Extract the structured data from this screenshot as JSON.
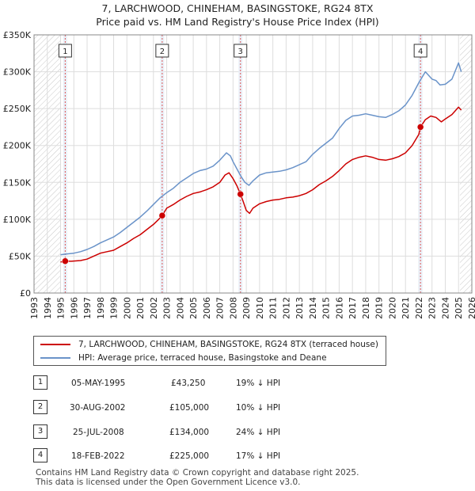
{
  "title_line1": "7, LARCHWOOD, CHINEHAM, BASINGSTOKE, RG24 8TX",
  "title_line2": "Price paid vs. HM Land Registry's House Price Index (HPI)",
  "colors": {
    "property": "#cc0000",
    "hpi": "#6a93c9",
    "grid": "#dddddd",
    "band": "#e8eef7"
  },
  "chart_data": {
    "type": "line",
    "x_range": [
      1993,
      2026
    ],
    "ylim": [
      0,
      350000
    ],
    "y_ticks": [
      {
        "value": 0,
        "label": "£0"
      },
      {
        "value": 50000,
        "label": "£50K"
      },
      {
        "value": 100000,
        "label": "£100K"
      },
      {
        "value": 150000,
        "label": "£150K"
      },
      {
        "value": 200000,
        "label": "£200K"
      },
      {
        "value": 250000,
        "label": "£250K"
      },
      {
        "value": 300000,
        "label": "£300K"
      },
      {
        "value": 350000,
        "label": "£350K"
      }
    ],
    "x_ticks": [
      "1993",
      "1994",
      "1995",
      "1996",
      "1997",
      "1998",
      "1999",
      "2000",
      "2001",
      "2002",
      "2003",
      "2004",
      "2005",
      "2006",
      "2007",
      "2008",
      "2009",
      "2010",
      "2011",
      "2012",
      "2013",
      "2014",
      "2015",
      "2016",
      "2017",
      "2018",
      "2019",
      "2020",
      "2021",
      "2022",
      "2023",
      "2024",
      "2025",
      "2026"
    ],
    "hatch_before": 1995.0,
    "hatch_after": 2025.1,
    "series": [
      {
        "name": "7, LARCHWOOD, CHINEHAM, BASINGSTOKE, RG24 8TX (terraced house)",
        "x": [
          1995.0,
          1995.35,
          1995.8,
          1996.5,
          1997.0,
          1997.5,
          1998.0,
          1998.5,
          1999.0,
          1999.5,
          2000.0,
          2000.5,
          2001.0,
          2001.5,
          2002.0,
          2002.4,
          2002.66,
          2003.0,
          2003.5,
          2004.0,
          2004.5,
          2005.0,
          2005.5,
          2006.0,
          2006.5,
          2007.0,
          2007.4,
          2007.7,
          2008.0,
          2008.3,
          2008.56,
          2008.75,
          2009.0,
          2009.25,
          2009.5,
          2010.0,
          2010.5,
          2011.0,
          2011.5,
          2012.0,
          2012.5,
          2013.0,
          2013.5,
          2014.0,
          2014.5,
          2015.0,
          2015.5,
          2016.0,
          2016.5,
          2017.0,
          2017.5,
          2018.0,
          2018.5,
          2019.0,
          2019.5,
          2020.0,
          2020.5,
          2021.0,
          2021.5,
          2022.0,
          2022.13,
          2022.5,
          2022.9,
          2023.3,
          2023.7,
          2024.0,
          2024.5,
          2025.0,
          2025.2
        ],
        "values": [
          42000,
          43250,
          43000,
          44000,
          46000,
          50000,
          54000,
          56000,
          58000,
          63000,
          68000,
          74000,
          79000,
          86000,
          93000,
          100000,
          105000,
          115000,
          120000,
          126000,
          131000,
          135000,
          137000,
          140000,
          144000,
          150000,
          160000,
          163000,
          155000,
          145000,
          134000,
          125000,
          112000,
          108000,
          115000,
          121000,
          124000,
          126000,
          127000,
          129000,
          130000,
          132000,
          135000,
          140000,
          147000,
          152000,
          158000,
          166000,
          175000,
          181000,
          184000,
          186000,
          184000,
          181000,
          180000,
          182000,
          185000,
          190000,
          200000,
          215000,
          225000,
          235000,
          240000,
          238000,
          232000,
          236000,
          242000,
          252000,
          248000
        ]
      },
      {
        "name": "HPI: Average price, terraced house, Basingstoke and Deane",
        "x": [
          1995.0,
          1995.5,
          1996.0,
          1996.5,
          1997.0,
          1997.5,
          1998.0,
          1998.5,
          1999.0,
          1999.5,
          2000.0,
          2000.5,
          2001.0,
          2001.5,
          2002.0,
          2002.5,
          2003.0,
          2003.5,
          2004.0,
          2004.5,
          2005.0,
          2005.5,
          2006.0,
          2006.5,
          2007.0,
          2007.5,
          2007.8,
          2008.0,
          2008.3,
          2008.6,
          2008.9,
          2009.2,
          2009.5,
          2010.0,
          2010.5,
          2011.0,
          2011.5,
          2012.0,
          2012.5,
          2013.0,
          2013.5,
          2014.0,
          2014.5,
          2015.0,
          2015.5,
          2016.0,
          2016.5,
          2017.0,
          2017.5,
          2018.0,
          2018.5,
          2019.0,
          2019.5,
          2020.0,
          2020.5,
          2021.0,
          2021.5,
          2022.0,
          2022.5,
          2023.0,
          2023.3,
          2023.6,
          2024.0,
          2024.5,
          2025.0,
          2025.2
        ],
        "values": [
          52000,
          53000,
          54000,
          56000,
          59000,
          63000,
          68000,
          72000,
          76000,
          82000,
          89000,
          96000,
          103000,
          111000,
          120000,
          129000,
          136000,
          142000,
          150000,
          156000,
          162000,
          166000,
          168000,
          172000,
          180000,
          190000,
          186000,
          178000,
          168000,
          158000,
          150000,
          146000,
          152000,
          160000,
          163000,
          164000,
          165000,
          167000,
          170000,
          174000,
          178000,
          188000,
          196000,
          203000,
          210000,
          223000,
          234000,
          240000,
          241000,
          243000,
          241000,
          239000,
          238000,
          242000,
          247000,
          255000,
          268000,
          285000,
          300000,
          290000,
          288000,
          282000,
          283000,
          290000,
          312000,
          300000
        ]
      }
    ],
    "sales": [
      {
        "id": "1",
        "x": 1995.35,
        "value": 43250
      },
      {
        "id": "2",
        "x": 2002.66,
        "value": 105000
      },
      {
        "id": "3",
        "x": 2008.56,
        "value": 134000
      },
      {
        "id": "4",
        "x": 2022.13,
        "value": 225000
      }
    ]
  },
  "legend": {
    "property": "7, LARCHWOOD, CHINEHAM, BASINGSTOKE, RG24 8TX (terraced house)",
    "hpi": "HPI: Average price, terraced house, Basingstoke and Deane"
  },
  "transactions": [
    {
      "id": "1",
      "date": "05-MAY-1995",
      "price": "£43,250",
      "hpi": "19% ↓ HPI"
    },
    {
      "id": "2",
      "date": "30-AUG-2002",
      "price": "£105,000",
      "hpi": "10% ↓ HPI"
    },
    {
      "id": "3",
      "date": "25-JUL-2008",
      "price": "£134,000",
      "hpi": "24% ↓ HPI"
    },
    {
      "id": "4",
      "date": "18-FEB-2022",
      "price": "£225,000",
      "hpi": "17% ↓ HPI"
    }
  ],
  "footer": {
    "line1": "Contains HM Land Registry data © Crown copyright and database right 2025.",
    "line2": "This data is licensed under the Open Government Licence v3.0."
  }
}
